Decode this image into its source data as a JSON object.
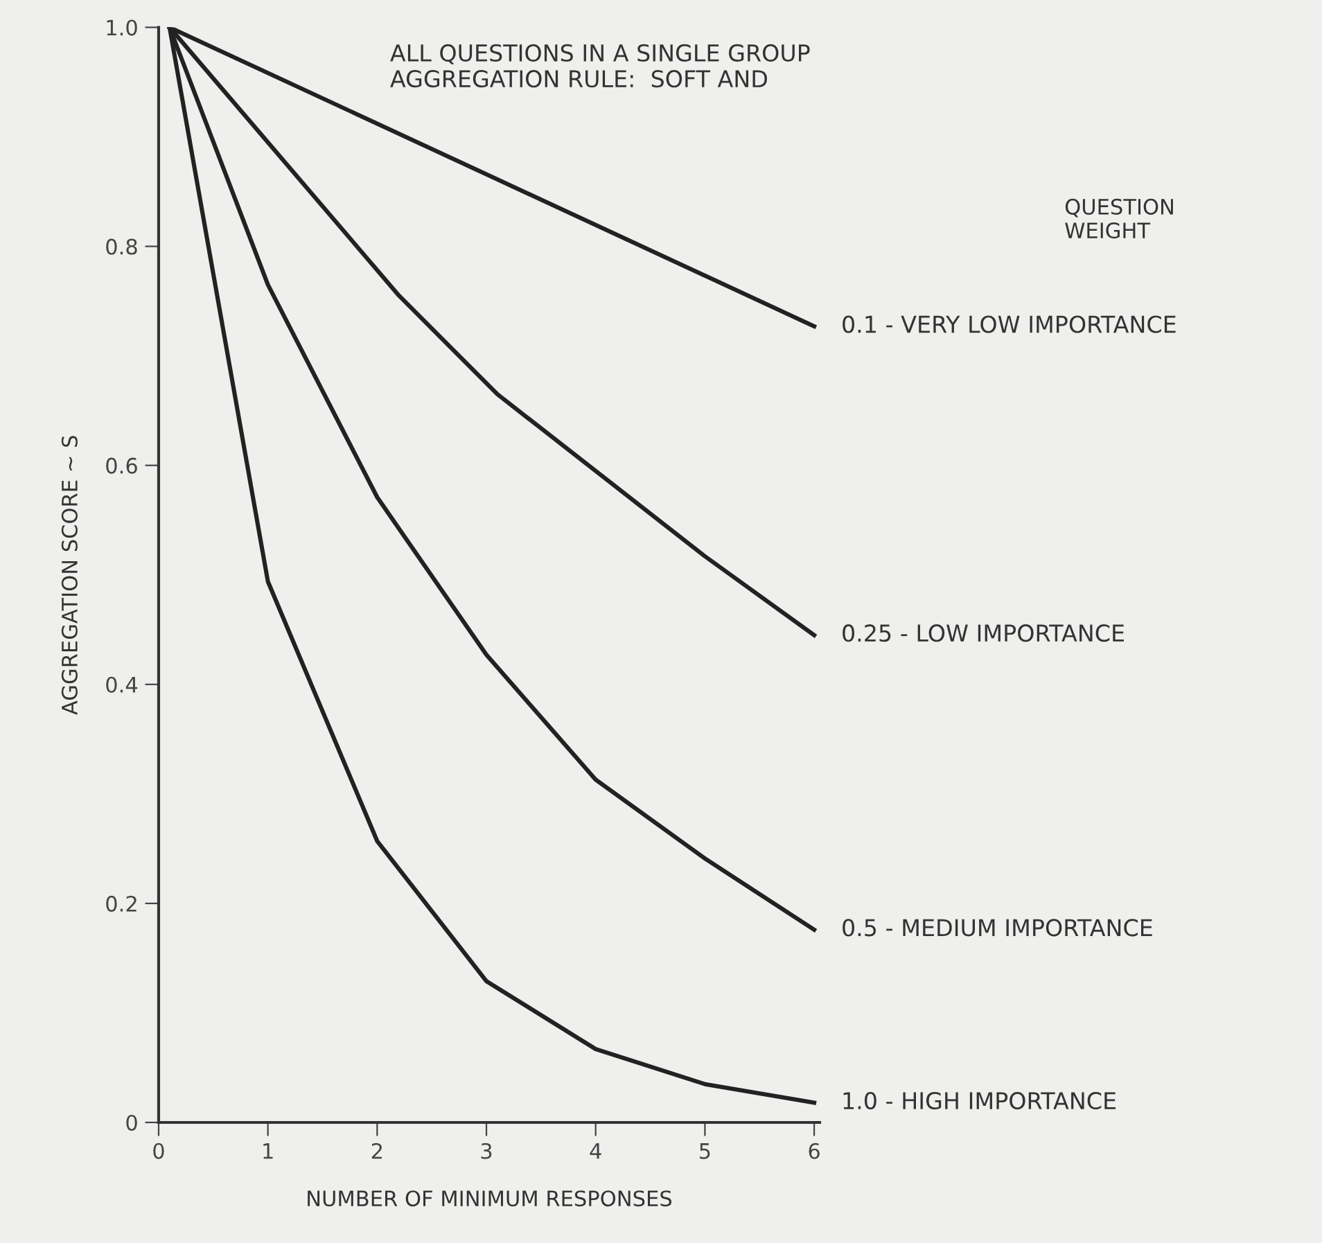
{
  "chart_data": {
    "type": "line",
    "title": "ALL QUESTIONS IN A SINGLE GROUP\nAGGREGATION RULE:  SOFT AND",
    "xlabel": "NUMBER OF MINIMUM RESPONSES",
    "ylabel": "AGGREGATION SCORE ~ S",
    "legend_title": "QUESTION\nWEIGHT",
    "xlim": [
      0,
      6.05
    ],
    "xticks": [
      0,
      1,
      2,
      3,
      4,
      5,
      6
    ],
    "ylim": [
      0,
      1.0
    ],
    "yticks": [
      {
        "value": 0,
        "label": "0"
      },
      0.2,
      0.4,
      0.6,
      0.8,
      {
        "value": 1,
        "label": "1.0"
      }
    ],
    "grid": false,
    "legend": "right",
    "marker": "none",
    "line_style": "solid",
    "series": [
      {
        "name": "0.1 - VERY LOW IMPORTANCE",
        "color": "#222222",
        "x": [
          0.1,
          6
        ],
        "values": [
          1.0,
          0.727
        ]
      },
      {
        "name": "0.25 - LOW IMPORTANCE",
        "color": "#222222",
        "x": [
          0.1,
          2.2,
          3.1,
          5,
          6
        ],
        "values": [
          1.0,
          0.755,
          0.665,
          0.517,
          0.445
        ]
      },
      {
        "name": "0.5 - MEDIUM IMPORTANCE",
        "color": "#222222",
        "x": [
          0.1,
          1,
          2,
          3,
          4,
          5,
          6
        ],
        "values": [
          1.0,
          0.765,
          0.571,
          0.427,
          0.313,
          0.241,
          0.176
        ]
      },
      {
        "name": "1.0 - HIGH IMPORTANCE",
        "color": "#222222",
        "x": [
          0.1,
          1,
          2,
          3,
          4,
          5,
          6
        ],
        "values": [
          1.0,
          0.494,
          0.257,
          0.129,
          0.067,
          0.035,
          0.018
        ]
      }
    ]
  }
}
